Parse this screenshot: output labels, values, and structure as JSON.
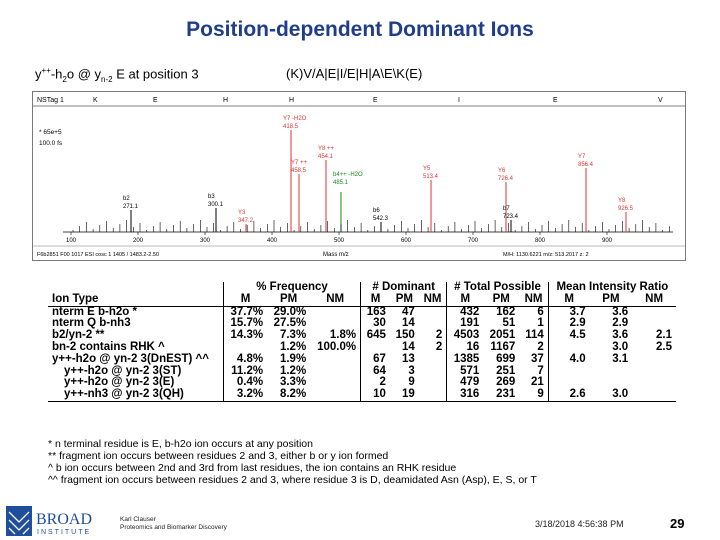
{
  "title": "Position-dependent Dominant Ions",
  "subtitle_left_parts": [
    "y",
    "++",
    "-h",
    "2",
    "o @ y",
    "n-2",
    " E at position 3"
  ],
  "subtitle_right": "(K)V/A|E|I/E|H|A\\E\\K(E)",
  "spectrum": {
    "header_id": "NSTag 1",
    "seq_letters": [
      "K",
      "E",
      "H",
      "H",
      "E",
      "I",
      "E",
      "V"
    ],
    "left_labels": [
      "* 65e+5",
      "100.0 fs"
    ],
    "peaks": [
      {
        "label": "Y7 -H2O",
        "value": "418.5",
        "color": "#d33"
      },
      {
        "label": "Y8 ++",
        "value": "454.1",
        "color": "#d33"
      },
      {
        "label": "Y7 ++",
        "value": "458.5",
        "color": "#d33"
      },
      {
        "label": "b4++ -H2O",
        "value": "485.1",
        "color": "#1a8a1a"
      },
      {
        "label": "Y5",
        "value": "513.4",
        "color": "#d33"
      },
      {
        "label": "Y6",
        "value": "726.4",
        "color": "#d33"
      },
      {
        "label": "Y7",
        "value": "856.4",
        "color": "#d33"
      },
      {
        "label": "b2",
        "value": "271.1",
        "color": "#000"
      },
      {
        "label": "b3",
        "value": "300.1",
        "color": "#000"
      },
      {
        "label": "Y3",
        "value": "347.2",
        "color": "#d33"
      },
      {
        "label": "b6",
        "value": "542.3",
        "color": "#000"
      },
      {
        "label": "b7",
        "value": "723.4",
        "color": "#000"
      },
      {
        "label": "Y8",
        "value": "926.5",
        "color": "#d33"
      }
    ],
    "axis_ticks": [
      "100",
      "200",
      "300",
      "400",
      "500",
      "600",
      "700",
      "800",
      "900"
    ],
    "axis_title": "Mass m/z",
    "footer_left": "F6b2851 F00 1017 ESI cosc 1 1405 / 1483.2-2.50",
    "footer_right": "M/H: 1130.6221  m/z: 513.2017 z: 2"
  },
  "table": {
    "group_headers": [
      "% Frequency",
      "# Dominant",
      "# Total Possible",
      "Mean Intensity Ratio"
    ],
    "sub_headers": [
      "Ion Type",
      "M",
      "PM",
      "NM",
      "M",
      "PM",
      "NM",
      "M",
      "PM",
      "NM",
      "M",
      "PM",
      "NM"
    ],
    "rows": [
      [
        "nterm E b-h2o *",
        "37.7%",
        "29.0%",
        "",
        "163",
        "47",
        "",
        "432",
        "162",
        "6",
        "3.7",
        "3.6",
        ""
      ],
      [
        "nterm Q b-nh3",
        "15.7%",
        "27.5%",
        "",
        "30",
        "14",
        "",
        "191",
        "51",
        "1",
        "2.9",
        "2.9",
        ""
      ],
      [
        "b2/yn-2 **",
        "14.3%",
        "7.3%",
        "1.8%",
        "645",
        "150",
        "2",
        "4503",
        "2051",
        "114",
        "4.5",
        "3.6",
        "2.1"
      ],
      [
        "bn-2 contains RHK ^",
        "",
        "1.2%",
        "100.0%",
        "",
        "14",
        "2",
        "16",
        "1167",
        "2",
        "",
        "3.0",
        "2.5"
      ],
      [
        "y++-h2o @ yn-2 3(DnEST) ^^",
        "4.8%",
        "1.9%",
        "",
        "67",
        "13",
        "",
        "1385",
        "699",
        "37",
        "4.0",
        "3.1",
        ""
      ],
      [
        "y++-h2o @ yn-2 3(ST)",
        "11.2%",
        "1.2%",
        "",
        "64",
        "3",
        "",
        "571",
        "251",
        "7",
        "",
        "",
        ""
      ],
      [
        "y++-h2o @ yn-2 3(E)",
        "0.4%",
        "3.3%",
        "",
        "2",
        "9",
        "",
        "479",
        "269",
        "21",
        "",
        "",
        ""
      ],
      [
        "y++-nh3 @ yn-2 3(QH)",
        "3.2%",
        "8.2%",
        "",
        "10",
        "19",
        "",
        "316",
        "231",
        "9",
        "2.6",
        "3.0",
        ""
      ]
    ]
  },
  "notes": [
    "* n terminal residue is E, b-h2o ion occurs at any position",
    "** fragment ion occurs between residues 2 and 3, either b or y ion formed",
    "^ b ion occurs between 2nd and 3rd from last residues, the ion contains an RHK residue",
    "^^ fragment ion occurs between residues 2 and 3, where residue 3 is D, deamidated Asn (Asp), E, S, or T"
  ],
  "footer": {
    "logo_top": "BROAD",
    "logo_bottom": "INSTITUTE",
    "author_line1": "Karl Clauser",
    "author_line2": "Proteomics and Biomarker Discovery",
    "date": "3/18/2018 4:56:38 PM",
    "page": "29"
  },
  "colors": {
    "title": "#1f3d8a",
    "peak_red": "#d33",
    "peak_green": "#1a8a1a",
    "logo_blue": "#1f4e9c"
  }
}
